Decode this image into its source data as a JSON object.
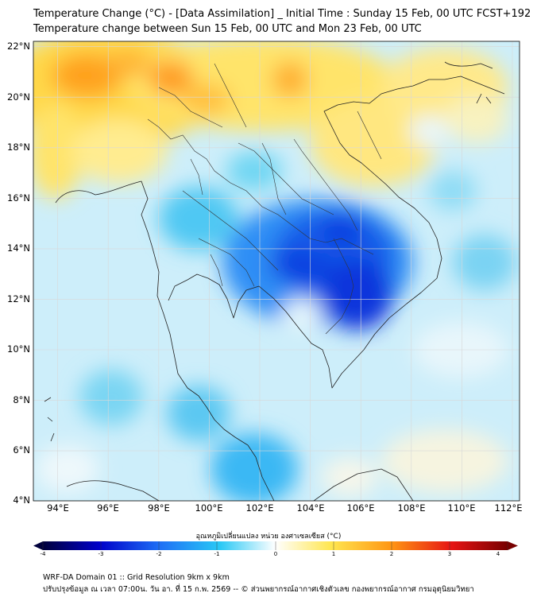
{
  "header": {
    "title_line1": "Temperature Change (°C) - [Data Assimilation] _ Initial Time : Sunday 15 Feb, 00 UTC FCST+192",
    "title_line2": "Temperature change between Sun 15 Feb, 00 UTC and Mon 23 Feb, 00 UTC"
  },
  "map": {
    "lat_labels": [
      "22°N",
      "20°N",
      "18°N",
      "16°N",
      "14°N",
      "12°N",
      "10°N",
      "8°N",
      "6°N",
      "4°N"
    ],
    "lon_labels": [
      "94°E",
      "96°E",
      "98°E",
      "100°E",
      "102°E",
      "104°E",
      "106°E",
      "108°E",
      "110°E",
      "112°E"
    ]
  },
  "colorbar": {
    "title": "อุณหภูมิเปลี่ยนแปลง หน่วย องศาเซลเซียส (°C)",
    "ticks": [
      "-4",
      "-3",
      "-2",
      "-1",
      "0",
      "1",
      "2",
      "3",
      "4"
    ],
    "colors": [
      "#00003c",
      "#0000a0",
      "#0a28e6",
      "#1e6ef5",
      "#28aaf5",
      "#50d2f0",
      "#a0e6f5",
      "#e6f7fb",
      "#ffffff",
      "#fff8b4",
      "#ffe650",
      "#ffc328",
      "#ff9614",
      "#ff5a0a",
      "#e61414",
      "#960000"
    ]
  },
  "footer": {
    "line1": "WRF-DA Domain 01 :: Grid Resolution 9km x 9km",
    "line2": "ปรับปรุงข้อมูล ณ เวลา 07:00น. วัน อา. ที่ 15 ก.พ. 2569 -- © ส่วนพยากรณ์อากาศเชิงตัวเลข กองพยากรณ์อากาศ กรมอุตุนิยมวิทยา"
  }
}
